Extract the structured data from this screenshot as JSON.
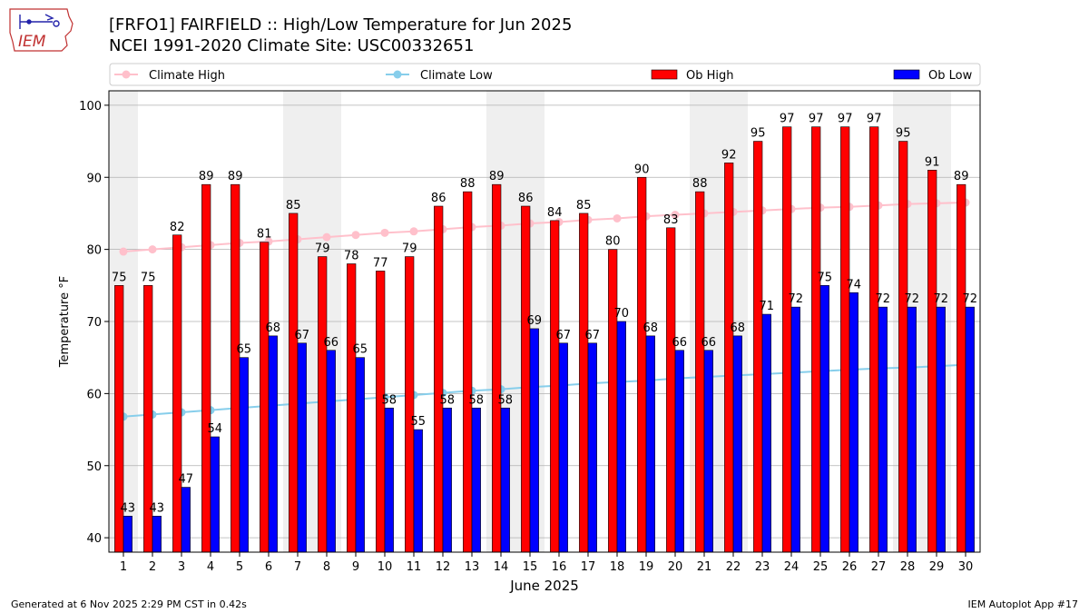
{
  "page": {
    "footer_left": "Generated at 6 Nov 2025 2:29 PM CST in 0.42s",
    "footer_right": "IEM Autoplot App #17",
    "logo_text": "IEM"
  },
  "chart_data": {
    "type": "bar",
    "title": "[FRFO1] FAIRFIELD :: High/Low Temperature for Jun 2025",
    "subtitle": "NCEI 1991-2020 Climate Site: USC00332651",
    "xlabel": "June 2025",
    "ylabel": "Temperature °F",
    "ylim": [
      38,
      102
    ],
    "yticks": [
      40,
      50,
      60,
      70,
      80,
      90,
      100
    ],
    "grid": true,
    "legend_position": "top",
    "categories": [
      "1",
      "2",
      "3",
      "4",
      "5",
      "6",
      "7",
      "8",
      "9",
      "10",
      "11",
      "12",
      "13",
      "14",
      "15",
      "16",
      "17",
      "18",
      "19",
      "20",
      "21",
      "22",
      "23",
      "24",
      "25",
      "26",
      "27",
      "28",
      "29",
      "30"
    ],
    "weekend_bands": [
      [
        1,
        1
      ],
      [
        7,
        8
      ],
      [
        14,
        15
      ],
      [
        21,
        22
      ],
      [
        28,
        29
      ]
    ],
    "series": [
      {
        "name": "Climate High",
        "kind": "line",
        "color": "#ffc0cb",
        "values": [
          79.7,
          80.0,
          80.3,
          80.6,
          80.9,
          81.1,
          81.4,
          81.7,
          82.0,
          82.3,
          82.5,
          82.8,
          83.1,
          83.3,
          83.6,
          83.8,
          84.1,
          84.3,
          84.6,
          84.8,
          85.0,
          85.2,
          85.4,
          85.6,
          85.8,
          85.9,
          86.1,
          86.3,
          86.4,
          86.5
        ]
      },
      {
        "name": "Climate Low",
        "kind": "line",
        "color": "#87ceeb",
        "values": [
          56.8,
          57.1,
          57.4,
          57.7,
          58.0,
          58.3,
          58.6,
          58.9,
          59.2,
          59.5,
          59.8,
          60.1,
          60.4,
          60.6,
          60.9,
          61.1,
          61.4,
          61.6,
          61.8,
          62.1,
          62.3,
          62.5,
          62.7,
          62.9,
          63.1,
          63.3,
          63.5,
          63.6,
          63.8,
          64.0
        ]
      },
      {
        "name": "Ob High",
        "kind": "bar",
        "color": "#ff0000",
        "values": [
          75,
          75,
          82,
          89,
          89,
          81,
          85,
          79,
          78,
          77,
          79,
          86,
          88,
          89,
          86,
          84,
          85,
          80,
          90,
          83,
          88,
          92,
          95,
          97,
          97,
          97,
          97,
          95,
          91,
          89
        ]
      },
      {
        "name": "Ob Low",
        "kind": "bar",
        "color": "#0000ff",
        "values": [
          43,
          43,
          47,
          54,
          65,
          68,
          67,
          66,
          65,
          58,
          55,
          58,
          58,
          58,
          69,
          67,
          67,
          70,
          68,
          66,
          66,
          68,
          71,
          72,
          75,
          74,
          72,
          72,
          72,
          72
        ]
      }
    ]
  }
}
